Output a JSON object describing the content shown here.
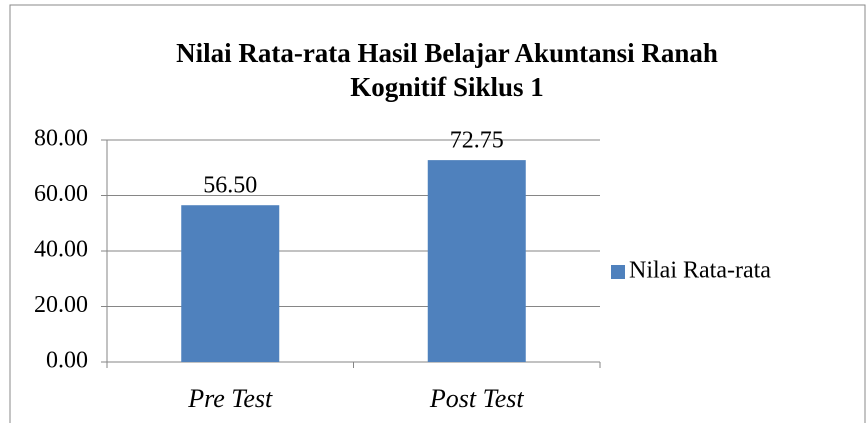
{
  "chart_data": {
    "type": "bar",
    "title": [
      "Nilai Rata-rata Hasil Belajar Akuntansi  Ranah",
      "Kognitif Siklus 1"
    ],
    "categories": [
      "Pre Test",
      "Post Test"
    ],
    "series": [
      {
        "name": "Nilai Rata-rata",
        "color": "#4f81bd",
        "values": [
          56.5,
          72.75
        ],
        "value_labels": [
          "56.50",
          "72.75"
        ]
      }
    ],
    "ylim": [
      0,
      80
    ],
    "yticks": [
      {
        "value": 0,
        "label": "0.00"
      },
      {
        "value": 20,
        "label": "20.00"
      },
      {
        "value": 40,
        "label": "40.00"
      },
      {
        "value": 60,
        "label": "60.00"
      },
      {
        "value": 80,
        "label": "80.00"
      }
    ],
    "grid": true,
    "legend": "right"
  }
}
